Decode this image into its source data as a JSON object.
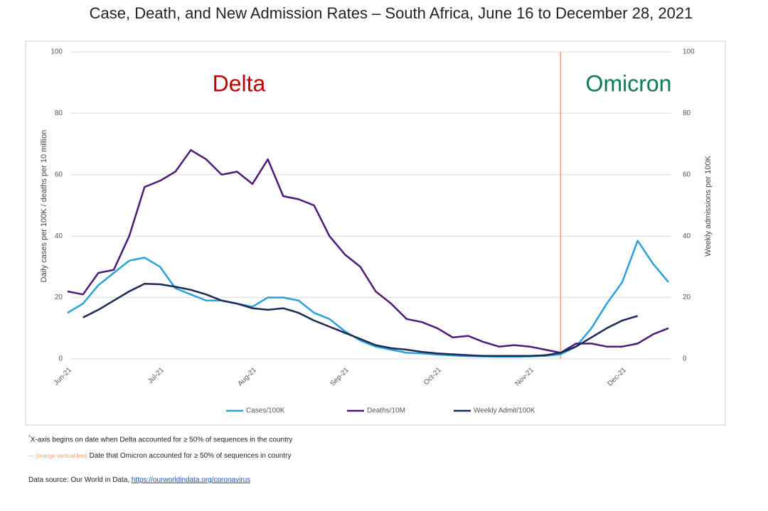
{
  "chart_data": {
    "type": "line",
    "title": "Case, Death, and New Admission Rates – South Africa, June 16 to December 28, 2021",
    "y_label": "Daily cases per 100K / deaths per 10 million",
    "y2_label": "Weekly admissions per 100K",
    "annotations": [
      "Delta",
      "Omicron"
    ],
    "vline_category_index": 32,
    "vline_color": "#f0a070",
    "categories": [
      "Jun-21",
      null,
      null,
      null,
      null,
      null,
      "Jul-21",
      null,
      null,
      null,
      null,
      null,
      "Aug-21",
      null,
      null,
      null,
      null,
      null,
      "Sep-21",
      null,
      null,
      null,
      null,
      null,
      "Oct-21",
      null,
      null,
      null,
      null,
      null,
      "Nov-21",
      null,
      null,
      null,
      null,
      null,
      "Dec-21",
      null,
      null,
      null
    ],
    "ylim": [
      0,
      100
    ],
    "yticks": [
      0,
      20,
      40,
      60,
      80,
      100
    ],
    "y2lim": [
      0,
      100
    ],
    "y2ticks": [
      0,
      20,
      40,
      60,
      80,
      100
    ],
    "grid": true,
    "legend": "bottom",
    "series": [
      {
        "name": "Cases/100K",
        "color": "#2aa0d8",
        "values": [
          15,
          18,
          24,
          28,
          32,
          33,
          30,
          23,
          21,
          19,
          19,
          18,
          17,
          20,
          20,
          19,
          15,
          13,
          9,
          6,
          4,
          3,
          2,
          1.8,
          1.4,
          1.1,
          0.9,
          0.8,
          0.7,
          0.7,
          0.8,
          1,
          1.5,
          4,
          10,
          18,
          25,
          38.5,
          31,
          25
        ]
      },
      {
        "name": "Deaths/10M",
        "color": "#4b1a7a",
        "values": [
          22,
          21,
          28,
          29,
          40,
          56,
          58,
          61,
          68,
          65,
          60,
          61,
          57,
          65,
          53,
          52,
          50,
          40,
          34,
          30,
          22,
          18,
          13,
          12,
          10,
          7,
          7.5,
          5.5,
          4,
          4.5,
          4,
          3,
          2,
          5,
          5,
          4,
          4,
          5,
          8,
          10
        ]
      },
      {
        "name": "Weekly Admit/100K",
        "color": "#1b2a55",
        "axis": "y2",
        "values": [
          null,
          13.5,
          16,
          19,
          22,
          24.5,
          24.3,
          23.5,
          22.5,
          21,
          19,
          18,
          16.5,
          16,
          16.5,
          15,
          12.5,
          10.5,
          8.5,
          6.5,
          4.5,
          3.5,
          3,
          2.3,
          1.8,
          1.5,
          1.2,
          1,
          1,
          1,
          1,
          1.2,
          2,
          4,
          7,
          10,
          12.5,
          14,
          null,
          null
        ]
      }
    ],
    "footnotes": {
      "line1_mark": "*",
      "line1": "X-axis begins on date when Delta accounted for ≥ 50% of sequences in the country",
      "line2_key": "— (orange vertical line)",
      "line2": "Date that Omicron accounted for ≥ 50% of sequences in country",
      "source": "Data source: Our World in Data, ",
      "link": "https://ourworldindata.org/coronavirus"
    }
  }
}
